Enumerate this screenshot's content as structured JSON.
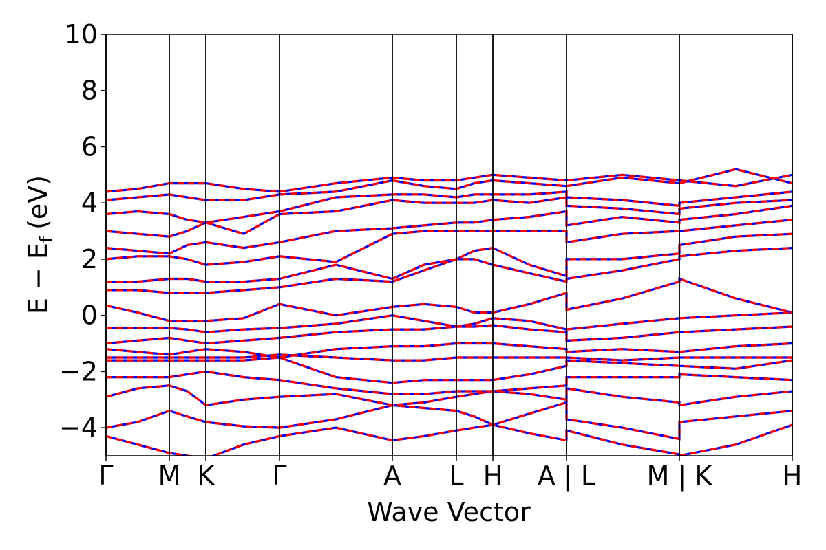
{
  "chart_data": {
    "type": "line",
    "xlabel": "Wave Vector",
    "ylabel": {
      "main": "E − E",
      "sub": "f",
      "unit": "(eV)"
    },
    "xlim": [
      0,
      9.97
    ],
    "ylim": [
      -5,
      10
    ],
    "yticks": [
      {
        "value": -4,
        "label": "−4"
      },
      {
        "value": -2,
        "label": "−2"
      },
      0,
      2,
      4,
      6,
      8,
      10
    ],
    "xticks": [
      {
        "value": 0,
        "label": "Γ"
      },
      {
        "value": 0.92,
        "label": "M"
      },
      {
        "value": 1.45,
        "label": "K"
      },
      {
        "value": 2.52,
        "label": "Γ"
      },
      {
        "value": 4.16,
        "label": "A"
      },
      {
        "value": 5.09,
        "label": "L"
      },
      {
        "value": 5.62,
        "label": "H"
      },
      {
        "value": 6.69,
        "label": "A | L"
      },
      {
        "value": 8.33,
        "label": "M | K"
      },
      {
        "value": 9.97,
        "label": "H"
      }
    ],
    "x": [
      0,
      0.46,
      0.92,
      1.18,
      1.45,
      2.0,
      2.52,
      3.34,
      4.16,
      4.62,
      5.09,
      5.35,
      5.62,
      6.15,
      6.69,
      6.69,
      7.5,
      8.33,
      8.33,
      9.15,
      9.97
    ],
    "line_colors": [
      "#0000ff",
      "#ff0000"
    ],
    "bands": [
      [
        -4.3,
        -4.6,
        -4.9,
        -5.0,
        -5.1,
        -4.6,
        -4.3,
        -4.0,
        -4.45,
        -4.3,
        -4.1,
        -4.0,
        -3.9,
        -4.2,
        -4.45,
        -4.1,
        -4.6,
        -4.95,
        -5.0,
        -4.6,
        -3.9
      ],
      [
        -4.0,
        -3.8,
        -3.4,
        -3.6,
        -3.8,
        -3.95,
        -4.0,
        -3.7,
        -3.2,
        -3.3,
        -3.4,
        -3.6,
        -3.9,
        -3.5,
        -3.1,
        -3.7,
        -4.0,
        -4.4,
        -3.8,
        -3.6,
        -3.4
      ],
      [
        -2.9,
        -2.6,
        -2.5,
        -2.7,
        -3.2,
        -3.0,
        -2.9,
        -2.8,
        -3.2,
        -3.1,
        -2.9,
        -2.8,
        -2.7,
        -2.8,
        -3.0,
        -2.6,
        -2.9,
        -3.1,
        -3.2,
        -2.9,
        -2.7
      ],
      [
        -2.2,
        -2.2,
        -2.2,
        -2.1,
        -2.0,
        -2.2,
        -2.3,
        -2.6,
        -2.8,
        -2.8,
        -2.7,
        -2.7,
        -2.7,
        -2.6,
        -2.5,
        -2.2,
        -2.2,
        -2.2,
        -2.1,
        -2.2,
        -2.3
      ],
      [
        -1.6,
        -1.6,
        -1.6,
        -1.6,
        -1.6,
        -1.6,
        -1.5,
        -2.2,
        -2.4,
        -2.3,
        -2.3,
        -2.3,
        -2.3,
        -2.1,
        -1.8,
        -1.6,
        -1.7,
        -1.8,
        -1.8,
        -1.9,
        -1.6
      ],
      [
        -1.5,
        -1.5,
        -1.5,
        -1.5,
        -1.5,
        -1.5,
        -1.4,
        -1.5,
        -1.6,
        -1.6,
        -1.5,
        -1.5,
        -1.5,
        -1.5,
        -1.5,
        -1.5,
        -1.6,
        -1.5,
        -1.5,
        -1.5,
        -1.5
      ],
      [
        -1.2,
        -1.3,
        -1.4,
        -1.3,
        -1.2,
        -1.3,
        -1.5,
        -1.2,
        -1.1,
        -1.1,
        -1.0,
        -1.0,
        -1.0,
        -1.1,
        -1.2,
        -1.3,
        -1.2,
        -1.3,
        -1.3,
        -1.1,
        -1.0
      ],
      [
        -1.0,
        -0.9,
        -0.8,
        -0.9,
        -1.0,
        -0.9,
        -0.8,
        -0.6,
        -0.5,
        -0.5,
        -0.4,
        -0.4,
        -0.35,
        -0.5,
        -0.6,
        -0.9,
        -0.8,
        -0.6,
        -0.6,
        -0.5,
        -0.4
      ],
      [
        -0.45,
        -0.45,
        -0.45,
        -0.5,
        -0.6,
        -0.5,
        -0.45,
        -0.3,
        0,
        -0.2,
        -0.4,
        -0.3,
        -0.1,
        -0.2,
        -0.5,
        -0.5,
        -0.3,
        -0.1,
        -0.1,
        0,
        0.1
      ],
      [
        0.35,
        0.1,
        -0.2,
        -0.2,
        -0.2,
        -0.1,
        0.4,
        0.0,
        0.3,
        0.4,
        0.3,
        0.1,
        0.1,
        0.4,
        0.8,
        0.2,
        0.6,
        1.2,
        1.3,
        0.6,
        0.1
      ],
      [
        0.9,
        0.9,
        0.8,
        0.8,
        0.8,
        0.9,
        1.0,
        1.3,
        1.2,
        1.6,
        2.0,
        2.0,
        1.8,
        1.5,
        1.2,
        1.3,
        1.6,
        2.0,
        2.1,
        2.3,
        2.4
      ],
      [
        1.2,
        1.2,
        1.3,
        1.3,
        1.2,
        1.2,
        1.3,
        1.8,
        1.3,
        1.8,
        2.0,
        2.3,
        2.4,
        1.8,
        1.4,
        2.0,
        2.0,
        2.2,
        2.5,
        2.8,
        2.9
      ],
      [
        2.0,
        2.1,
        2.1,
        2.0,
        1.8,
        1.9,
        2.1,
        1.9,
        2.9,
        3.0,
        3.0,
        3.0,
        3.0,
        3.0,
        3.0,
        2.6,
        2.9,
        3.0,
        3.0,
        3.2,
        3.4
      ],
      [
        2.4,
        2.3,
        2.2,
        2.5,
        2.6,
        2.4,
        2.6,
        3.0,
        3.1,
        3.2,
        3.3,
        3.3,
        3.4,
        3.5,
        3.7,
        3.2,
        3.5,
        3.3,
        3.4,
        3.6,
        3.9
      ],
      [
        3.0,
        2.9,
        2.8,
        3.0,
        3.3,
        2.9,
        3.6,
        3.7,
        4.1,
        4.0,
        4.0,
        4.0,
        4.1,
        4.0,
        4.2,
        3.9,
        3.8,
        3.6,
        3.8,
        4.0,
        4.1
      ],
      [
        3.6,
        3.7,
        3.6,
        3.4,
        3.3,
        3.5,
        3.7,
        4.2,
        4.3,
        4.3,
        4.2,
        4.3,
        4.3,
        4.3,
        4.4,
        4.2,
        4.1,
        3.9,
        4.0,
        4.2,
        4.4
      ],
      [
        4.1,
        4.2,
        4.3,
        4.2,
        4.1,
        4.1,
        4.3,
        4.4,
        4.8,
        4.6,
        4.5,
        4.7,
        4.8,
        4.7,
        4.6,
        4.6,
        4.9,
        4.7,
        4.7,
        5.2,
        4.7
      ],
      [
        4.4,
        4.5,
        4.7,
        4.7,
        4.7,
        4.5,
        4.4,
        4.7,
        4.9,
        4.8,
        4.8,
        4.9,
        5.0,
        4.9,
        4.8,
        4.8,
        5.0,
        4.8,
        4.8,
        4.6,
        5.0
      ]
    ]
  }
}
